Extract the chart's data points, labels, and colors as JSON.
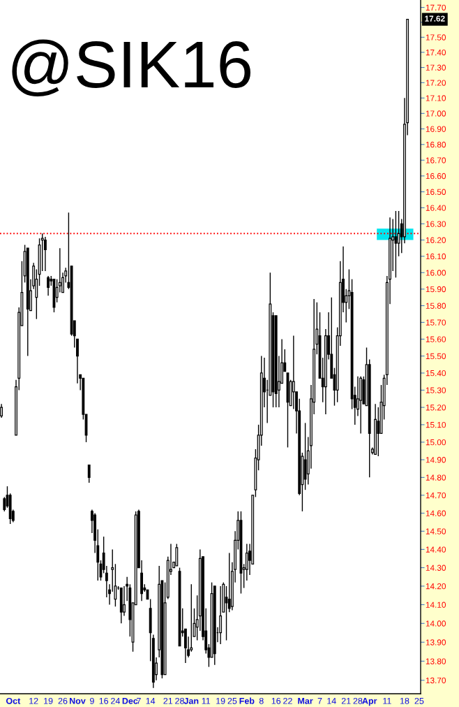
{
  "chart_data": {
    "type": "candlestick",
    "title": "@SIK16",
    "categories": [
      null,
      null,
      null,
      null,
      "Oct",
      null,
      null,
      null,
      null,
      null,
      null,
      "12",
      null,
      null,
      null,
      null,
      "19",
      null,
      null,
      null,
      null,
      "26",
      null,
      null,
      null,
      null,
      "Nov",
      null,
      null,
      null,
      null,
      "9",
      null,
      null,
      null,
      "16",
      null,
      null,
      null,
      "24",
      null,
      null,
      null,
      null,
      "Dec",
      null,
      null,
      "7",
      null,
      null,
      null,
      "14",
      null,
      null,
      null,
      null,
      null,
      "21",
      null,
      null,
      null,
      "28",
      null,
      null,
      null,
      "Jan",
      null,
      null,
      null,
      null,
      "11",
      null,
      null,
      null,
      null,
      "19",
      null,
      null,
      null,
      "25",
      null,
      null,
      null,
      null,
      "Feb",
      null,
      null,
      null,
      null,
      "8",
      null,
      null,
      null,
      null,
      "16",
      null,
      null,
      null,
      "22",
      null,
      null,
      null,
      null,
      null,
      "Mar",
      null,
      null,
      null,
      null,
      "7",
      null,
      null,
      null,
      "14",
      null,
      null,
      null,
      null,
      "21",
      null,
      null,
      null,
      "28",
      null,
      null,
      null,
      "Apr",
      null,
      null,
      null,
      null,
      null,
      "11",
      null,
      null,
      null,
      null,
      null,
      "18",
      null,
      null,
      null,
      null,
      "25"
    ],
    "ohlc": [
      [
        15.15,
        15.22,
        15.14,
        15.2
      ],
      [
        14.68,
        14.69,
        14.61,
        14.62
      ],
      [
        14.7,
        14.75,
        14.63,
        14.64
      ],
      [
        14.7,
        14.71,
        14.54,
        14.57
      ],
      [
        14.61,
        14.62,
        14.55,
        14.56
      ],
      [
        15.04,
        15.36,
        15.04,
        15.32
      ],
      [
        15.37,
        15.79,
        15.3,
        15.76
      ],
      [
        15.68,
        16.07,
        15.68,
        15.88
      ],
      [
        15.98,
        16.17,
        15.94,
        16.13
      ],
      [
        16.15,
        16.15,
        15.5,
        15.78
      ],
      [
        15.77,
        15.96,
        15.77,
        15.89
      ],
      [
        15.92,
        16.06,
        15.9,
        16.04
      ],
      [
        15.85,
        16.02,
        15.72,
        15.96
      ],
      [
        15.99,
        16.21,
        15.92,
        16.17
      ],
      [
        16.2,
        16.24,
        16.01,
        16.21
      ],
      [
        16.2,
        16.22,
        16.01,
        16.14
      ],
      [
        15.97,
        15.98,
        15.86,
        15.91
      ],
      [
        15.96,
        15.98,
        15.92,
        15.95
      ],
      [
        15.96,
        15.96,
        15.76,
        15.79
      ],
      [
        15.85,
        15.96,
        15.82,
        15.91
      ],
      [
        15.92,
        16.15,
        15.88,
        15.94
      ],
      [
        15.88,
        16.0,
        15.88,
        15.97
      ],
      [
        15.98,
        16.03,
        15.94,
        16.01
      ],
      [
        15.94,
        16.37,
        15.9,
        15.91
      ],
      [
        16.04,
        16.04,
        15.62,
        15.63
      ],
      [
        15.71,
        15.71,
        15.55,
        15.62
      ],
      [
        15.6,
        15.6,
        15.34,
        15.5
      ],
      [
        15.39,
        15.39,
        15.3,
        15.37
      ],
      [
        15.37,
        15.37,
        15.13,
        15.16
      ],
      [
        15.16,
        15.16,
        15.0,
        15.04
      ],
      [
        14.87,
        14.87,
        14.77,
        14.8
      ],
      [
        14.61,
        14.62,
        14.49,
        14.56
      ],
      [
        14.59,
        14.6,
        14.38,
        14.45
      ],
      [
        14.42,
        14.51,
        14.23,
        14.33
      ],
      [
        14.32,
        14.34,
        14.23,
        14.25
      ],
      [
        14.38,
        14.47,
        14.27,
        14.29
      ],
      [
        14.27,
        14.31,
        14.14,
        14.23
      ],
      [
        14.18,
        14.21,
        14.1,
        14.16
      ],
      [
        14.29,
        14.4,
        14.17,
        14.3
      ],
      [
        14.13,
        14.32,
        14.09,
        14.2
      ],
      [
        14.19,
        14.2,
        14.18,
        14.19
      ],
      [
        14.19,
        14.19,
        14.0,
        14.06
      ],
      [
        14.06,
        14.2,
        14.04,
        14.1
      ],
      [
        14.21,
        14.25,
        14.12,
        14.2
      ],
      [
        14.19,
        14.21,
        13.93,
        14.02
      ],
      [
        13.9,
        14.11,
        13.85,
        14.11
      ],
      [
        14.1,
        14.61,
        14.1,
        14.59
      ],
      [
        14.61,
        14.62,
        14.3,
        14.3
      ],
      [
        14.27,
        14.34,
        14.12,
        14.16
      ],
      [
        14.19,
        14.21,
        14.17,
        14.18
      ],
      [
        14.18,
        14.18,
        14.13,
        14.13
      ],
      [
        14.08,
        14.13,
        13.8,
        13.95
      ],
      [
        13.92,
        13.94,
        13.66,
        13.69
      ],
      [
        13.73,
        13.82,
        13.7,
        13.79
      ],
      [
        13.86,
        14.31,
        13.82,
        14.21
      ],
      [
        14.23,
        14.23,
        13.71,
        13.73
      ],
      [
        13.73,
        14.22,
        13.73,
        14.11
      ],
      [
        14.14,
        14.36,
        14.13,
        14.34
      ],
      [
        14.28,
        14.43,
        14.26,
        14.29
      ],
      [
        14.3,
        14.33,
        14.3,
        14.33
      ],
      [
        14.31,
        14.43,
        14.31,
        14.41
      ],
      [
        14.28,
        14.3,
        13.88,
        13.88
      ],
      [
        13.96,
        14.08,
        13.93,
        13.95
      ],
      [
        13.97,
        13.97,
        13.79,
        13.87
      ],
      [
        13.86,
        13.93,
        13.82,
        13.83
      ],
      [
        13.86,
        14.21,
        13.85,
        13.87
      ],
      [
        13.93,
        14.08,
        13.93,
        14.0
      ],
      [
        13.98,
        14.15,
        13.91,
        14.02
      ],
      [
        14.04,
        14.4,
        13.96,
        14.35
      ],
      [
        14.36,
        14.36,
        13.91,
        13.93
      ],
      [
        13.96,
        14.08,
        13.84,
        13.86
      ],
      [
        13.87,
        13.89,
        13.77,
        13.82
      ],
      [
        13.82,
        14.22,
        13.82,
        14.16
      ],
      [
        14.2,
        14.2,
        13.78,
        13.84
      ],
      [
        13.95,
        13.98,
        13.9,
        13.95
      ],
      [
        13.95,
        14.2,
        13.89,
        14.04
      ],
      [
        14.06,
        14.22,
        14.06,
        14.21
      ],
      [
        14.14,
        14.2,
        13.91,
        14.11
      ],
      [
        14.13,
        14.38,
        14.06,
        14.08
      ],
      [
        14.09,
        14.33,
        14.07,
        14.28
      ],
      [
        14.29,
        14.5,
        14.22,
        14.45
      ],
      [
        14.45,
        14.61,
        14.4,
        14.56
      ],
      [
        14.56,
        14.61,
        14.16,
        14.27
      ],
      [
        14.29,
        14.32,
        14.19,
        14.3
      ],
      [
        14.29,
        14.43,
        14.23,
        14.38
      ],
      [
        14.39,
        14.43,
        14.26,
        14.34
      ],
      [
        14.32,
        14.7,
        14.32,
        14.7
      ],
      [
        14.73,
        14.96,
        14.69,
        14.91
      ],
      [
        14.9,
        15.1,
        14.84,
        15.04
      ],
      [
        15.04,
        15.5,
        14.98,
        15.4
      ],
      [
        15.37,
        15.49,
        15.2,
        15.29
      ],
      [
        15.3,
        15.36,
        15.11,
        15.3
      ],
      [
        15.27,
        16.0,
        15.27,
        15.81
      ],
      [
        15.74,
        15.76,
        15.2,
        15.29
      ],
      [
        15.74,
        15.74,
        15.2,
        15.28
      ],
      [
        15.3,
        15.5,
        15.2,
        15.35
      ],
      [
        15.34,
        15.6,
        15.34,
        15.46
      ],
      [
        15.46,
        15.54,
        15.41,
        15.41
      ],
      [
        15.4,
        15.4,
        14.97,
        15.23
      ],
      [
        15.21,
        15.36,
        15.21,
        15.35
      ],
      [
        15.29,
        15.62,
        15.19,
        15.35
      ],
      [
        15.29,
        15.29,
        15.05,
        15.18
      ],
      [
        15.18,
        15.25,
        14.7,
        14.71
      ],
      [
        14.76,
        14.94,
        14.61,
        14.92
      ],
      [
        14.9,
        15.11,
        14.73,
        14.79
      ],
      [
        14.82,
        15.03,
        14.76,
        14.95
      ],
      [
        14.98,
        15.33,
        14.85,
        15.25
      ],
      [
        15.23,
        15.84,
        15.16,
        15.54
      ],
      [
        15.57,
        15.82,
        15.51,
        15.66
      ],
      [
        15.62,
        15.76,
        15.37,
        15.37
      ],
      [
        15.37,
        15.49,
        15.23,
        15.32
      ],
      [
        15.32,
        15.66,
        15.16,
        15.62
      ],
      [
        15.62,
        15.76,
        15.48,
        15.51
      ],
      [
        15.51,
        15.85,
        15.37,
        15.37
      ],
      [
        15.39,
        15.43,
        15.21,
        15.3
      ],
      [
        15.3,
        15.67,
        15.23,
        15.62
      ],
      [
        15.62,
        16.07,
        15.56,
        15.94
      ],
      [
        15.96,
        16.16,
        15.76,
        15.82
      ],
      [
        15.82,
        15.9,
        15.7,
        15.86
      ],
      [
        15.86,
        16.02,
        15.78,
        15.89
      ],
      [
        15.88,
        15.96,
        15.19,
        15.25
      ],
      [
        15.27,
        15.32,
        15.1,
        15.2
      ],
      [
        15.19,
        15.38,
        15.15,
        15.25
      ],
      [
        15.24,
        15.38,
        15.05,
        15.37
      ],
      [
        15.36,
        15.38,
        15.22,
        15.22
      ],
      [
        15.21,
        15.55,
        15.21,
        15.45
      ],
      [
        15.45,
        15.48,
        14.8,
        15.05
      ],
      [
        14.94,
        14.97,
        14.93,
        14.96
      ],
      [
        14.93,
        15.22,
        14.93,
        15.13
      ],
      [
        15.12,
        15.2,
        14.92,
        15.05
      ],
      [
        15.05,
        15.33,
        15.05,
        15.23
      ],
      [
        15.21,
        15.39,
        15.13,
        15.37
      ],
      [
        15.39,
        15.98,
        15.33,
        15.94
      ],
      [
        15.96,
        16.34,
        15.81,
        16.21
      ],
      [
        16.2,
        16.33,
        16.01,
        16.22
      ],
      [
        16.22,
        16.38,
        15.97,
        16.18
      ],
      [
        16.18,
        16.38,
        16.1,
        16.24
      ],
      [
        16.3,
        16.33,
        16.12,
        16.22
      ],
      [
        16.22,
        17.1,
        16.18,
        16.93
      ],
      [
        16.94,
        17.62,
        16.86,
        17.62
      ],
      null,
      null,
      null,
      null
    ],
    "log": true,
    "ylim": [
      13.63,
      17.75
    ],
    "yticks": [
      {
        "value": 13.7,
        "label": "13.70"
      },
      {
        "value": 13.8,
        "label": "13.80"
      },
      {
        "value": 13.9,
        "label": "13.90"
      },
      {
        "value": 14.0,
        "label": "14.00"
      },
      {
        "value": 14.1,
        "label": "14.10"
      },
      {
        "value": 14.2,
        "label": "14.20"
      },
      {
        "value": 14.3,
        "label": "14.30"
      },
      {
        "value": 14.4,
        "label": "14.40"
      },
      {
        "value": 14.5,
        "label": "14.50"
      },
      {
        "value": 14.6,
        "label": "14.60"
      },
      {
        "value": 14.7,
        "label": "14.70"
      },
      {
        "value": 14.8,
        "label": "14.80"
      },
      {
        "value": 14.9,
        "label": "14.90"
      },
      {
        "value": 15.0,
        "label": "15.00"
      },
      {
        "value": 15.1,
        "label": "15.10"
      },
      {
        "value": 15.2,
        "label": "15.20"
      },
      {
        "value": 15.3,
        "label": "15.30"
      },
      {
        "value": 15.4,
        "label": "15.40"
      },
      {
        "value": 15.5,
        "label": "15.50"
      },
      {
        "value": 15.6,
        "label": "15.60"
      },
      {
        "value": 15.7,
        "label": "15.70"
      },
      {
        "value": 15.8,
        "label": "15.80"
      },
      {
        "value": 15.9,
        "label": "15.90"
      },
      {
        "value": 16.0,
        "label": "16.00"
      },
      {
        "value": 16.1,
        "label": "16.10"
      },
      {
        "value": 16.2,
        "label": "16.20"
      },
      {
        "value": 16.3,
        "label": "16.30"
      },
      {
        "value": 16.4,
        "label": "16.40"
      },
      {
        "value": 16.5,
        "label": "16.50"
      },
      {
        "value": 16.6,
        "label": "16.60"
      },
      {
        "value": 16.7,
        "label": "16.70"
      },
      {
        "value": 16.8,
        "label": "16.80"
      },
      {
        "value": 16.9,
        "label": "16.90"
      },
      {
        "value": 17.0,
        "label": "17.00"
      },
      {
        "value": 17.1,
        "label": "17.10"
      },
      {
        "value": 17.2,
        "label": "17.20"
      },
      {
        "value": 17.3,
        "label": "17.30"
      },
      {
        "value": 17.4,
        "label": "17.40"
      },
      {
        "value": 17.5,
        "label": "17.50"
      },
      {
        "value": 17.6,
        "label": null
      },
      {
        "value": 17.7,
        "label": "17.70"
      }
    ],
    "ref_lines": [
      {
        "axis": "y",
        "value": 16.24,
        "color": "#ff0000",
        "line_style": "dotted"
      }
    ],
    "bands": [
      {
        "axis": "y",
        "from": 16.2,
        "to": 16.27,
        "color": "#00e5ee"
      }
    ],
    "annotations": [
      {
        "text": "17.62",
        "y": 17.62
      }
    ],
    "grid": false,
    "legend": false
  }
}
